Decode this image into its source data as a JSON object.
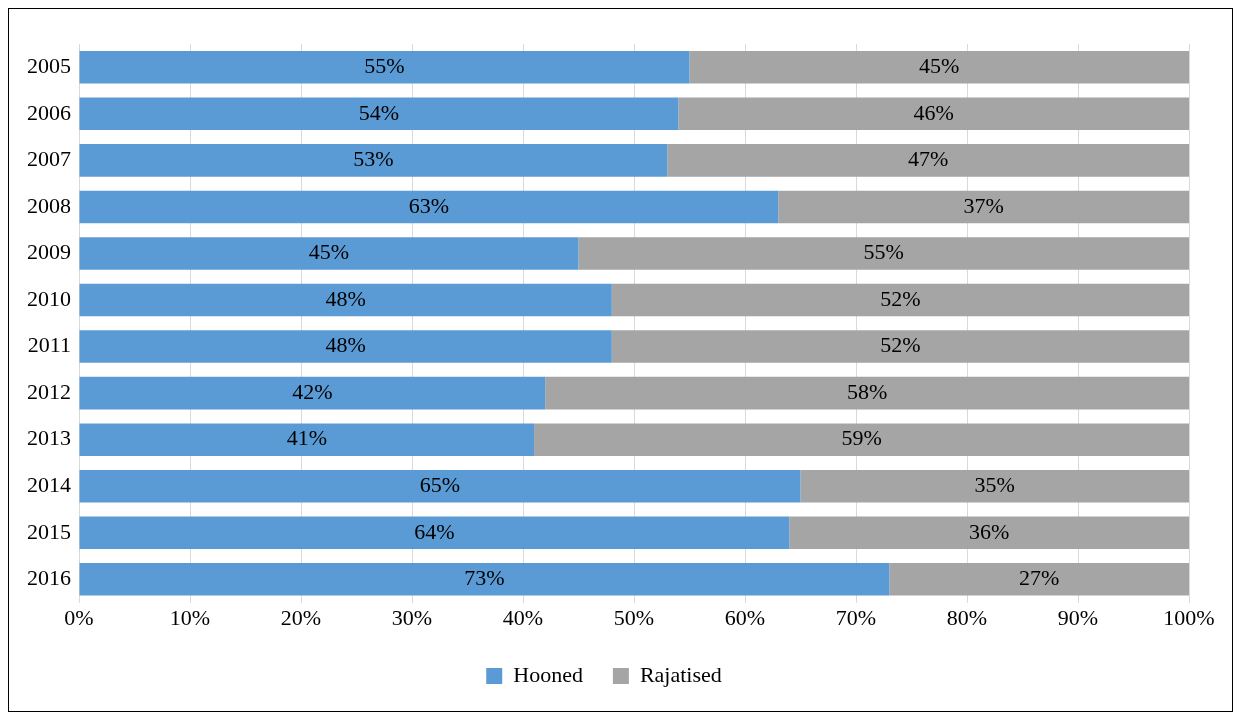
{
  "chart_data": {
    "type": "bar",
    "orientation": "horizontal",
    "stacked": true,
    "categories": [
      "2005",
      "2006",
      "2007",
      "2008",
      "2009",
      "2010",
      "2011",
      "2012",
      "2013",
      "2014",
      "2015",
      "2016"
    ],
    "series": [
      {
        "name": "Hooned",
        "color": "#5b9bd5",
        "values": [
          55,
          54,
          53,
          63,
          45,
          48,
          48,
          42,
          41,
          65,
          64,
          73
        ],
        "value_labels": [
          "55%",
          "54%",
          "53%",
          "63%",
          "45%",
          "48%",
          "48%",
          "42%",
          "41%",
          "65%",
          "64%",
          "73%"
        ]
      },
      {
        "name": "Rajatised",
        "color": "#a5a5a5",
        "values": [
          45,
          46,
          47,
          37,
          55,
          52,
          52,
          58,
          59,
          35,
          36,
          27
        ],
        "value_labels": [
          "45%",
          "46%",
          "47%",
          "37%",
          "55%",
          "52%",
          "52%",
          "58%",
          "59%",
          "35%",
          "36%",
          "27%"
        ]
      }
    ],
    "xlim": [
      0,
      100
    ],
    "xticks": [
      {
        "value": 0,
        "label": "0%"
      },
      {
        "value": 10,
        "label": "10%"
      },
      {
        "value": 20,
        "label": "20%"
      },
      {
        "value": 30,
        "label": "30%"
      },
      {
        "value": 40,
        "label": "40%"
      },
      {
        "value": 50,
        "label": "50%"
      },
      {
        "value": 60,
        "label": "60%"
      },
      {
        "value": 70,
        "label": "70%"
      },
      {
        "value": 80,
        "label": "80%"
      },
      {
        "value": 90,
        "label": "90%"
      },
      {
        "value": 100,
        "label": "100%"
      }
    ],
    "grid": "x",
    "legend": "bottom"
  }
}
